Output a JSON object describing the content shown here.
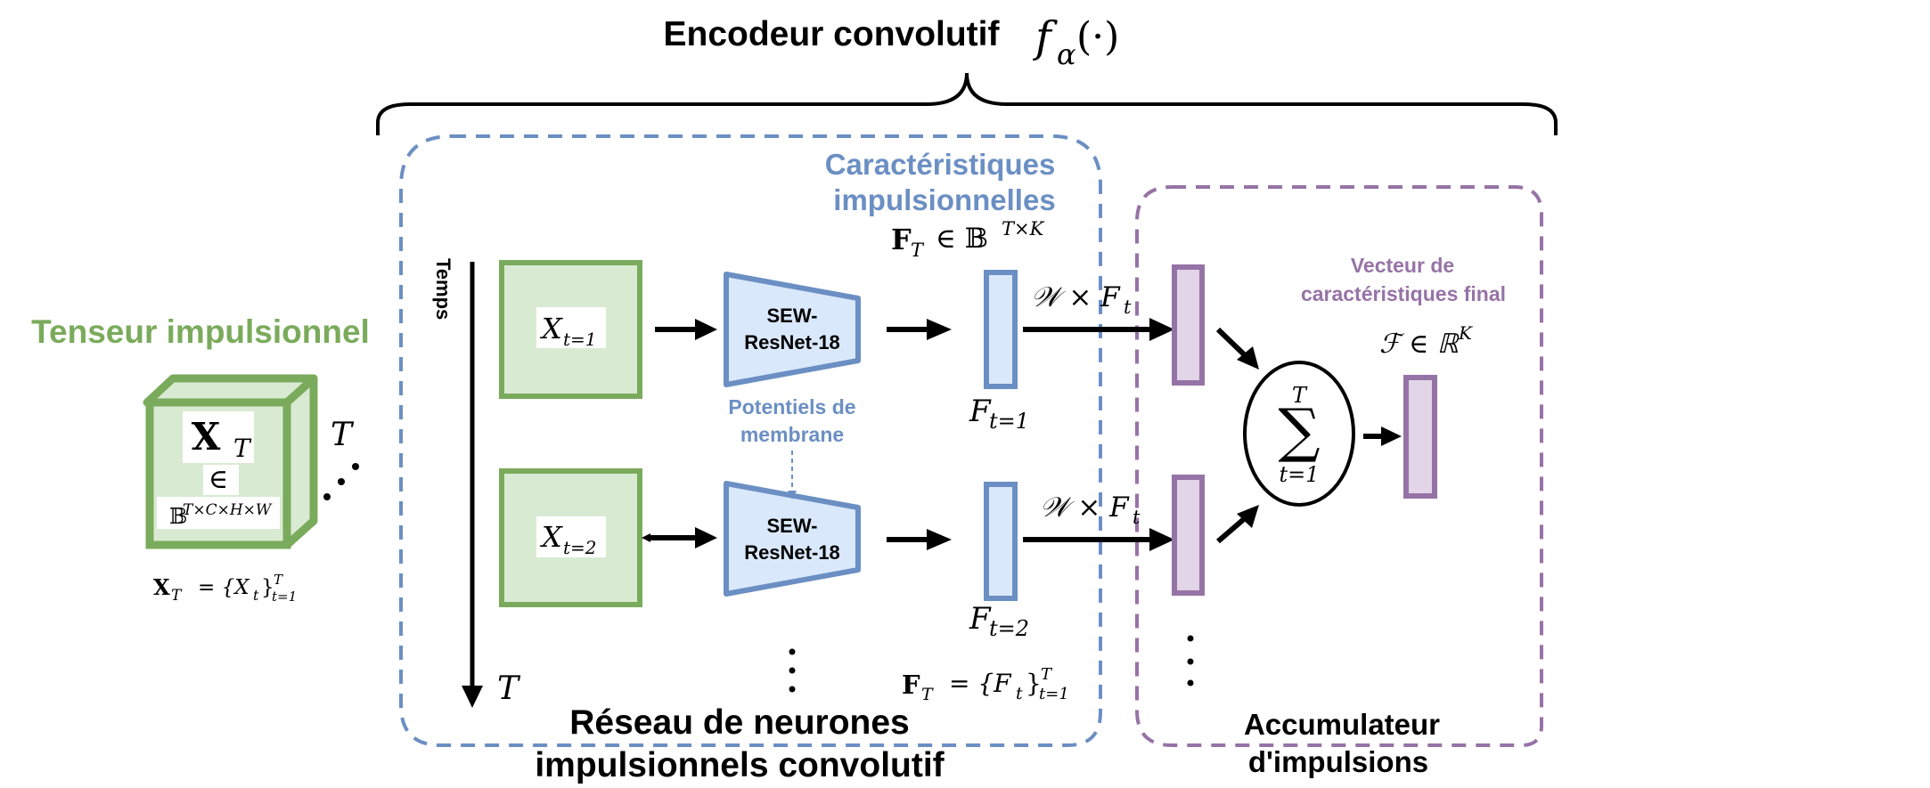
{
  "encoder": {
    "title": "Encodeur convolutif",
    "fn": "f",
    "fn_sub": "α",
    "fn_arg": "(·)"
  },
  "input": {
    "title": "Tenseur impulsionnel",
    "cube_x": "X",
    "cube_sub": "T",
    "cube_in": "∈",
    "cube_set": "𝔹",
    "cube_sup": "T×C×H×W",
    "depth_label": "T",
    "eq_x": "X",
    "eq_sub": "T",
    "eq_rhs": "= {X",
    "eq_rhs_sub": "t",
    "eq_close": "}",
    "eq_sup": "T",
    "eq_lim": "t=1"
  },
  "snn": {
    "time_label": "Temps",
    "time_end": "T",
    "frame1_x": "X",
    "frame1_sub": "t=1",
    "frame2_x": "X",
    "frame2_sub": "t=2",
    "block1_l1": "SEW-",
    "block1_l2": "ResNet-18",
    "block2_l1": "SEW-",
    "block2_l2": "ResNet-18",
    "potential_l1": "Potentiels de",
    "potential_l2": "membrane",
    "features_title_l1": "Caractéristiques",
    "features_title_l2": "impulsionnelles",
    "features_eq": "F",
    "features_eq_sub": "T",
    "features_eq_in": "∈ 𝔹",
    "features_eq_sup": "T×K",
    "feat1_label": "F",
    "feat1_sub": "t=1",
    "feat2_label": "F",
    "feat2_sub": "t=2",
    "weight1": "𝒲 × F",
    "weight1_sub": "t",
    "weight2": "𝒲 × F",
    "weight2_sub": "t",
    "ft_set": "F",
    "ft_set_sub": "T",
    "ft_set_rhs": "= {F",
    "ft_set_rhs_sub": "t",
    "ft_set_close": "}",
    "ft_set_sup": "T",
    "ft_set_lim": "t=1",
    "title_l1": "Réseau de neurones",
    "title_l2": "impulsionnels convolutif"
  },
  "accumulator": {
    "final_l1": "Vecteur de",
    "final_l2": "caractéristiques final",
    "final_eq": "ℱ ∈ ℝ",
    "final_eq_sup": "K",
    "sum_symbol": "∑",
    "sum_top": "T",
    "sum_bottom": "t=1",
    "title_l1": "Accumulateur",
    "title_l2": "d'impulsions"
  },
  "colors": {
    "green": "#7aab5c",
    "green_fill": "#d9ead3",
    "blue": "#6b8fc3",
    "blue_fill": "#dae8fc",
    "purple": "#9673a6",
    "purple_fill": "#e1d5e7",
    "black": "#000000"
  }
}
